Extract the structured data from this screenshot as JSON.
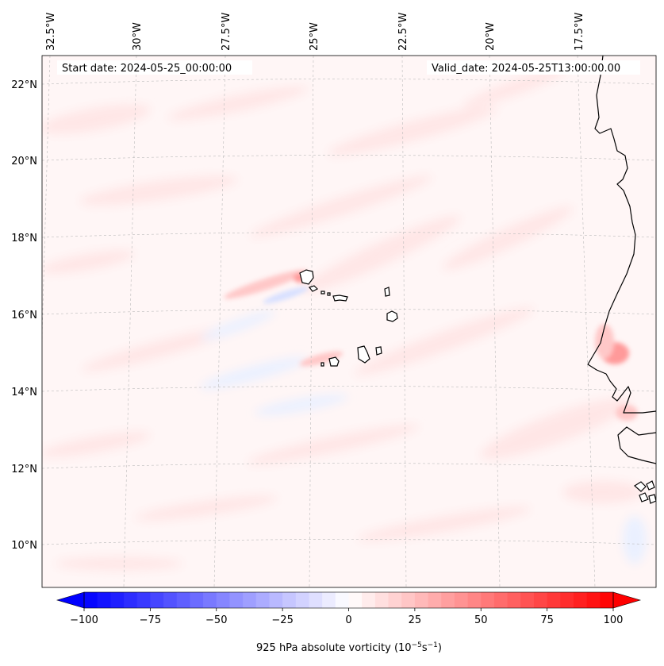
{
  "annotations": {
    "start_date": "Start date: 2024-05-25_00:00:00",
    "valid_date": "Valid_date: 2024-05-25T13:00:00.00"
  },
  "longitude_labels": [
    "32.5°W",
    "30°W",
    "27.5°W",
    "25°W",
    "22.5°W",
    "20°W",
    "17.5°W"
  ],
  "latitude_labels": [
    "22°N",
    "20°N",
    "18°N",
    "16°N",
    "14°N",
    "12°N",
    "10°N"
  ],
  "colorbar": {
    "label": "925 hPa absolute vorticity (10",
    "label_exp1": "−5",
    "label_mid": "s",
    "label_exp2": "−1",
    "label_end": ")",
    "ticks": [
      "−100",
      "−75",
      "−50",
      "−25",
      "0",
      "25",
      "50",
      "75",
      "100"
    ],
    "min": -100,
    "max": 100,
    "levels": 40,
    "colors": {
      "negative": "#0000ff",
      "zero": "#ffffff",
      "positive": "#ff0000"
    }
  },
  "field_colors": {
    "background": "#fff6f6",
    "weak_positive": "#ffe6e6",
    "moderate_positive": "#ffc8c8",
    "strong_positive": "#ff9a9a",
    "weak_negative": "#eaf0ff",
    "negative": "#d8e0ff"
  }
}
